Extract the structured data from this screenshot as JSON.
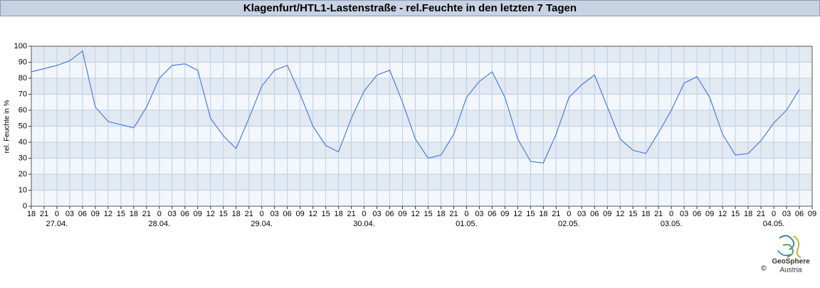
{
  "chart_data": {
    "type": "line",
    "title": "Klagenfurt/HTL1-Lastenstraße - rel.Feuchte in den letzten 7 Tagen",
    "y_label": "rel. Feuchte in %",
    "color": "#4a7fd8",
    "grid": true,
    "x": [
      0,
      3,
      6,
      9,
      12,
      15,
      18,
      21,
      24,
      27,
      30,
      33,
      36,
      39,
      42,
      45,
      48,
      51,
      54,
      57,
      60,
      63,
      66,
      69,
      72,
      75,
      78,
      81,
      84,
      87,
      90,
      93,
      96,
      99,
      102,
      105,
      108,
      111,
      114,
      117,
      120,
      123,
      126,
      129,
      132,
      135,
      138,
      141,
      144,
      147,
      150,
      153,
      156,
      159,
      162,
      165,
      168,
      171,
      174,
      177,
      180
    ],
    "values": [
      84,
      86,
      88,
      91,
      97,
      62,
      53,
      51,
      49,
      62,
      80,
      88,
      89,
      85,
      55,
      44,
      36,
      55,
      75,
      85,
      88,
      70,
      50,
      38,
      34,
      55,
      72,
      82,
      85,
      65,
      42,
      30,
      32,
      45,
      68,
      78,
      84,
      68,
      42,
      28,
      27,
      45,
      68,
      76,
      82,
      62,
      42,
      35,
      33,
      46,
      60,
      77,
      81,
      68,
      45,
      32,
      33,
      41,
      52,
      60,
      73
    ],
    "xlim": [
      0,
      183
    ],
    "ylim": [
      0,
      100
    ],
    "yticks": [
      0,
      10,
      20,
      30,
      40,
      50,
      60,
      70,
      80,
      90,
      100
    ],
    "xticks": [
      {
        "value": 0,
        "label": "18"
      },
      {
        "value": 3,
        "label": "21"
      },
      {
        "value": 6,
        "label": "0"
      },
      {
        "value": 9,
        "label": "03"
      },
      {
        "value": 12,
        "label": "06"
      },
      {
        "value": 15,
        "label": "09"
      },
      {
        "value": 18,
        "label": "12"
      },
      {
        "value": 21,
        "label": "15"
      },
      {
        "value": 24,
        "label": "18"
      },
      {
        "value": 27,
        "label": "21"
      },
      {
        "value": 30,
        "label": "0"
      },
      {
        "value": 33,
        "label": "03"
      },
      {
        "value": 36,
        "label": "06"
      },
      {
        "value": 39,
        "label": "09"
      },
      {
        "value": 42,
        "label": "12"
      },
      {
        "value": 45,
        "label": "15"
      },
      {
        "value": 48,
        "label": "18"
      },
      {
        "value": 51,
        "label": "21"
      },
      {
        "value": 54,
        "label": "0"
      },
      {
        "value": 57,
        "label": "03"
      },
      {
        "value": 60,
        "label": "06"
      },
      {
        "value": 63,
        "label": "09"
      },
      {
        "value": 66,
        "label": "12"
      },
      {
        "value": 69,
        "label": "15"
      },
      {
        "value": 72,
        "label": "18"
      },
      {
        "value": 75,
        "label": "21"
      },
      {
        "value": 78,
        "label": "0"
      },
      {
        "value": 81,
        "label": "03"
      },
      {
        "value": 84,
        "label": "06"
      },
      {
        "value": 87,
        "label": "09"
      },
      {
        "value": 90,
        "label": "12"
      },
      {
        "value": 93,
        "label": "15"
      },
      {
        "value": 96,
        "label": "18"
      },
      {
        "value": 99,
        "label": "21"
      },
      {
        "value": 102,
        "label": "0"
      },
      {
        "value": 105,
        "label": "03"
      },
      {
        "value": 108,
        "label": "06"
      },
      {
        "value": 111,
        "label": "09"
      },
      {
        "value": 114,
        "label": "12"
      },
      {
        "value": 117,
        "label": "15"
      },
      {
        "value": 120,
        "label": "18"
      },
      {
        "value": 123,
        "label": "21"
      },
      {
        "value": 126,
        "label": "0"
      },
      {
        "value": 129,
        "label": "03"
      },
      {
        "value": 132,
        "label": "06"
      },
      {
        "value": 135,
        "label": "09"
      },
      {
        "value": 138,
        "label": "12"
      },
      {
        "value": 141,
        "label": "15"
      },
      {
        "value": 144,
        "label": "18"
      },
      {
        "value": 147,
        "label": "21"
      },
      {
        "value": 150,
        "label": "0"
      },
      {
        "value": 153,
        "label": "03"
      },
      {
        "value": 156,
        "label": "06"
      },
      {
        "value": 159,
        "label": "09"
      },
      {
        "value": 162,
        "label": "12"
      },
      {
        "value": 165,
        "label": "15"
      },
      {
        "value": 168,
        "label": "18"
      },
      {
        "value": 171,
        "label": "21"
      },
      {
        "value": 174,
        "label": "0"
      },
      {
        "value": 177,
        "label": "03"
      },
      {
        "value": 180,
        "label": "06"
      },
      {
        "value": 183,
        "label": "09"
      }
    ],
    "date_labels": [
      {
        "value": 6,
        "label": "27.04."
      },
      {
        "value": 30,
        "label": "28.04."
      },
      {
        "value": 54,
        "label": "29.04."
      },
      {
        "value": 78,
        "label": "30.04."
      },
      {
        "value": 102,
        "label": "01.05."
      },
      {
        "value": 126,
        "label": "02.05."
      },
      {
        "value": 150,
        "label": "03.05."
      },
      {
        "value": 174,
        "label": "04.05."
      }
    ]
  },
  "footer": {
    "brand": "GeoSphere",
    "sub": "Austria",
    "copyright": "©"
  }
}
